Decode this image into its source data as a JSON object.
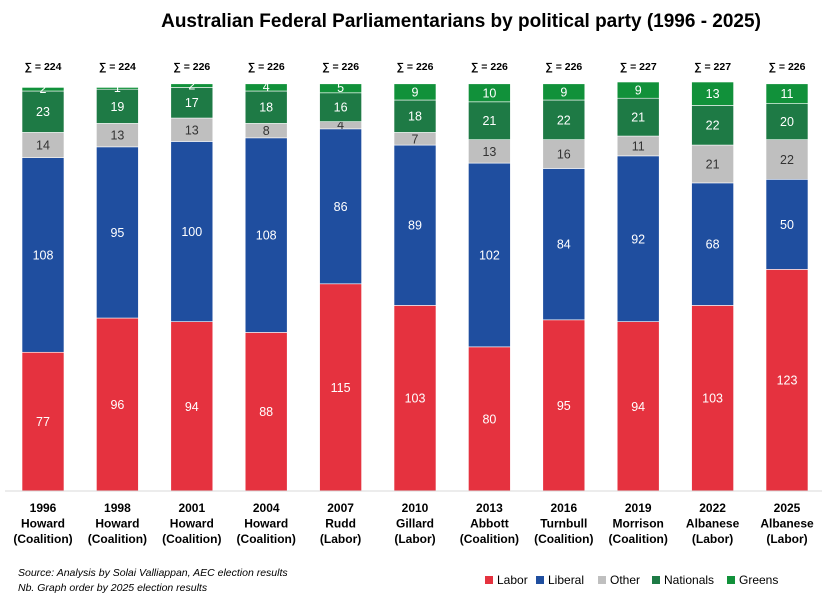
{
  "chart_data": {
    "type": "bar",
    "stacked": true,
    "title": "Australian Federal Parliamentarians by political party (1996 - 2025)",
    "categories": [
      {
        "year": "1996",
        "leader": "Howard",
        "party": "(Coalition)"
      },
      {
        "year": "1998",
        "leader": "Howard",
        "party": "(Coalition)"
      },
      {
        "year": "2001",
        "leader": "Howard",
        "party": "(Coalition)"
      },
      {
        "year": "2004",
        "leader": "Howard",
        "party": "(Coalition)"
      },
      {
        "year": "2007",
        "leader": "Rudd",
        "party": "(Labor)"
      },
      {
        "year": "2010",
        "leader": "Gillard",
        "party": "(Labor)"
      },
      {
        "year": "2013",
        "leader": "Abbott",
        "party": "(Coalition)"
      },
      {
        "year": "2016",
        "leader": "Turnbull",
        "party": "(Coalition)"
      },
      {
        "year": "2019",
        "leader": "Morrison",
        "party": "(Coalition)"
      },
      {
        "year": "2022",
        "leader": "Albanese",
        "party": "(Labor)"
      },
      {
        "year": "2025",
        "leader": "Albanese",
        "party": "(Labor)"
      }
    ],
    "totals": [
      "∑ = 224",
      "∑ = 224",
      "∑ = 226",
      "∑ = 226",
      "∑ = 226",
      "∑ = 226",
      "∑ = 226",
      "∑ = 226",
      "∑ = 227",
      "∑ = 227",
      "∑ = 226"
    ],
    "series": [
      {
        "name": "Labor",
        "color": "#e5323f",
        "values": [
          77,
          96,
          94,
          88,
          115,
          103,
          80,
          95,
          94,
          103,
          123
        ]
      },
      {
        "name": "Liberal",
        "color": "#1f4e9f",
        "values": [
          108,
          95,
          100,
          108,
          86,
          89,
          102,
          84,
          92,
          68,
          50
        ]
      },
      {
        "name": "Other",
        "color": "#bfbfbf",
        "values": [
          14,
          13,
          13,
          8,
          4,
          7,
          13,
          16,
          11,
          21,
          22
        ]
      },
      {
        "name": "Nationals",
        "color": "#1e7a45",
        "values": [
          23,
          19,
          17,
          18,
          16,
          18,
          21,
          22,
          21,
          22,
          20
        ]
      },
      {
        "name": "Greens",
        "color": "#11913a",
        "values": [
          2,
          1,
          2,
          4,
          5,
          9,
          10,
          9,
          9,
          13,
          11
        ]
      }
    ],
    "ylim": [
      0,
      227
    ],
    "grid": false,
    "legend_position": "bottom-right",
    "notes": [
      "Source: Analysis by Solai Valliappan, AEC election results",
      "Nb. Graph order by 2025 election results"
    ]
  }
}
